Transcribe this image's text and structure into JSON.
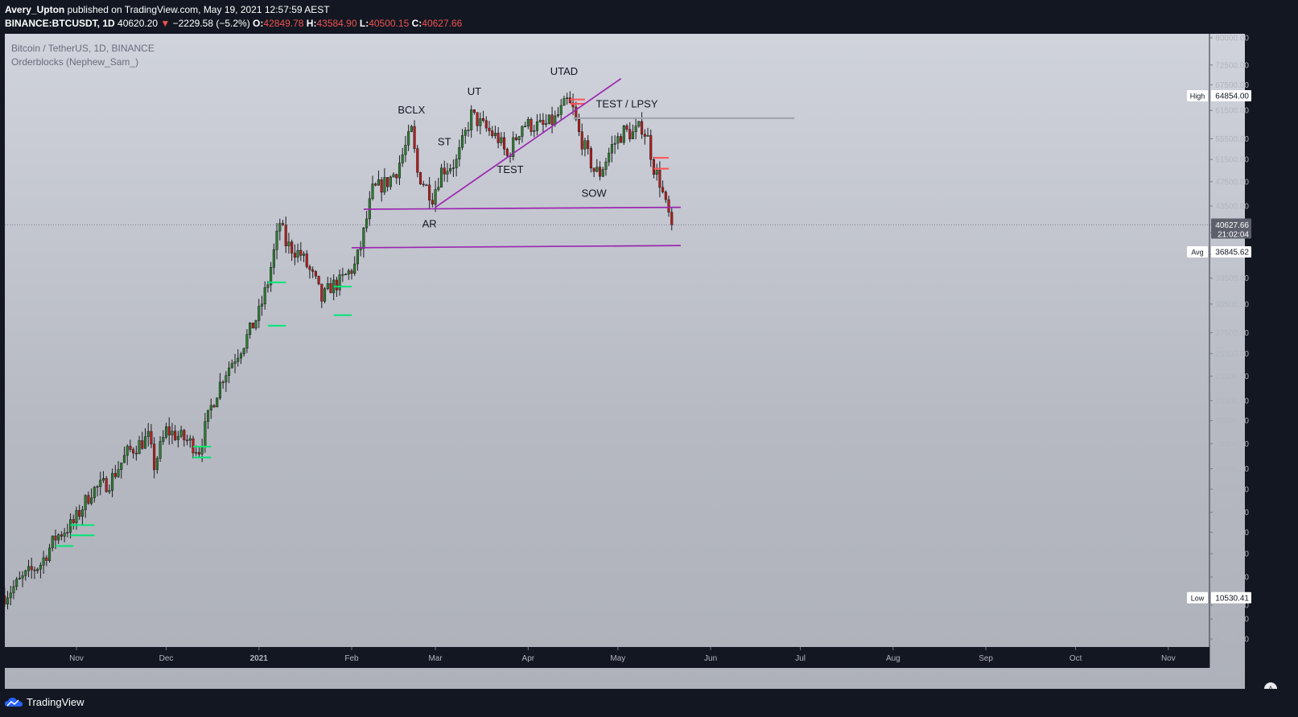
{
  "header": {
    "author": "Avery_Upton",
    "published_text": "published on TradingView.com, May 19, 2021 12:57:59 AEST",
    "symbol": "BINANCE:BTCUSDT, 1D",
    "last": "40620.20",
    "change": "−2229.58 (−5.2%)",
    "o_label": "O:",
    "open": "42849.78",
    "h_label": "H:",
    "high": "43584.90",
    "l_label": "L:",
    "low": "40500.15",
    "c_label": "C:",
    "close": "40627.66"
  },
  "legend": {
    "pair": "Bitcoin / TetherUS, 1D, BINANCE",
    "indicator": "Orderblocks (Nephew_Sam_)"
  },
  "footer": {
    "brand": "TradingView",
    "auto_label": "A"
  },
  "colors": {
    "bull": "#2e7d32",
    "bear": "#b71c1c",
    "wick": "#1c1c1c",
    "trendline": "#9c27b0",
    "ob_bull": "#00e676",
    "ob_bear": "#ff5252",
    "hl_bull": "#b2ff59",
    "hl_bear": "#ff1744"
  },
  "chart_data": {
    "type": "candlestick",
    "title": "Bitcoin / TetherUS, 1D, BINANCE",
    "yscale": "log",
    "ylim": [
      8600,
      82000
    ],
    "x_ticks": [
      "Nov",
      "Dec",
      "2021",
      "Feb",
      "Mar",
      "Apr",
      "May",
      "Jun",
      "Jul",
      "Aug",
      "Sep",
      "Oct",
      "Nov"
    ],
    "y_ticks": [
      "80000.00",
      "72500.00",
      "67500.00",
      "61500.00",
      "55500.00",
      "51500.00",
      "47500.00",
      "43500.00",
      "39500.00",
      "36500.00",
      "33500.00",
      "30500.00",
      "27500.00",
      "25500.00",
      "23500.00",
      "21500.00",
      "20000.00",
      "18400.00",
      "16800.00",
      "15600.00",
      "14350.00",
      "13350.00",
      "12350.00",
      "11350.00",
      "10250.00",
      "9750.00",
      "9070.00"
    ],
    "price_labels": [
      {
        "label": "High",
        "value": "64854.00"
      },
      {
        "label": "",
        "value": "40627.66",
        "sub": "21:02:04"
      },
      {
        "label": "Avg",
        "value": "36845.62"
      },
      {
        "label": "Low",
        "value": "10530.41"
      }
    ],
    "annotations": [
      "BCLX",
      "UT",
      "UTAD",
      "ST",
      "TEST",
      "TEST / LPSY",
      "AR",
      "SOW"
    ],
    "series": [
      {
        "name": "BTCUSDT",
        "anchors": [
          [
            "2020-10-08",
            10600
          ],
          [
            "2020-10-15",
            11400
          ],
          [
            "2020-10-20",
            11900
          ],
          [
            "2020-10-25",
            13100
          ],
          [
            "2020-10-31",
            13800
          ],
          [
            "2020-11-06",
            15500
          ],
          [
            "2020-11-12",
            16000
          ],
          [
            "2020-11-18",
            17800
          ],
          [
            "2020-11-25",
            18800
          ],
          [
            "2020-11-27",
            17000
          ],
          [
            "2020-12-01",
            19300
          ],
          [
            "2020-12-08",
            18600
          ],
          [
            "2020-12-12",
            18000
          ],
          [
            "2020-12-16",
            21000
          ],
          [
            "2020-12-20",
            23500
          ],
          [
            "2020-12-27",
            26500
          ],
          [
            "2021-01-01",
            29500
          ],
          [
            "2021-01-04",
            33000
          ],
          [
            "2021-01-08",
            41000
          ],
          [
            "2021-01-10",
            38000
          ],
          [
            "2021-01-13",
            37000
          ],
          [
            "2021-01-15",
            36500
          ],
          [
            "2021-01-20",
            33000
          ],
          [
            "2021-01-22",
            31000
          ],
          [
            "2021-01-25",
            32500
          ],
          [
            "2021-01-28",
            33000
          ],
          [
            "2021-02-02",
            35000
          ],
          [
            "2021-02-04",
            37500
          ],
          [
            "2021-02-08",
            46000
          ],
          [
            "2021-02-13",
            47500
          ],
          [
            "2021-02-16",
            49500
          ],
          [
            "2021-02-21",
            57000
          ],
          [
            "2021-02-23",
            49000
          ],
          [
            "2021-02-28",
            45000
          ],
          [
            "2021-03-03",
            49500
          ],
          [
            "2021-03-08",
            51000
          ],
          [
            "2021-03-13",
            60500
          ],
          [
            "2021-03-17",
            58000
          ],
          [
            "2021-03-22",
            55500
          ],
          [
            "2021-03-25",
            52000
          ],
          [
            "2021-03-30",
            58500
          ],
          [
            "2021-04-06",
            58000
          ],
          [
            "2021-04-10",
            59500
          ],
          [
            "2021-04-14",
            63500
          ],
          [
            "2021-04-16",
            61500
          ],
          [
            "2021-04-18",
            56500
          ],
          [
            "2021-04-23",
            49500
          ],
          [
            "2021-04-25",
            49000
          ],
          [
            "2021-04-29",
            54000
          ],
          [
            "2021-05-03",
            57000
          ],
          [
            "2021-05-06",
            56500
          ],
          [
            "2021-05-09",
            58000
          ],
          [
            "2021-05-11",
            55500
          ],
          [
            "2021-05-13",
            50000
          ],
          [
            "2021-05-15",
            47500
          ],
          [
            "2021-05-17",
            43500
          ],
          [
            "2021-05-19",
            40620
          ]
        ]
      }
    ],
    "lines": [
      {
        "from": [
          "2021-02-05",
          43000
        ],
        "to": [
          "2021-05-22",
          43300
        ]
      },
      {
        "from": [
          "2021-02-01",
          37400
        ],
        "to": [
          "2021-05-22",
          37700
        ]
      },
      {
        "from": [
          "2021-03-01",
          43300
        ],
        "to": [
          "2021-05-02",
          69000
        ]
      },
      {
        "from": [
          "2021-04-16",
          59800
        ],
        "to": [
          "2021-06-29",
          59800
        ]
      }
    ]
  }
}
